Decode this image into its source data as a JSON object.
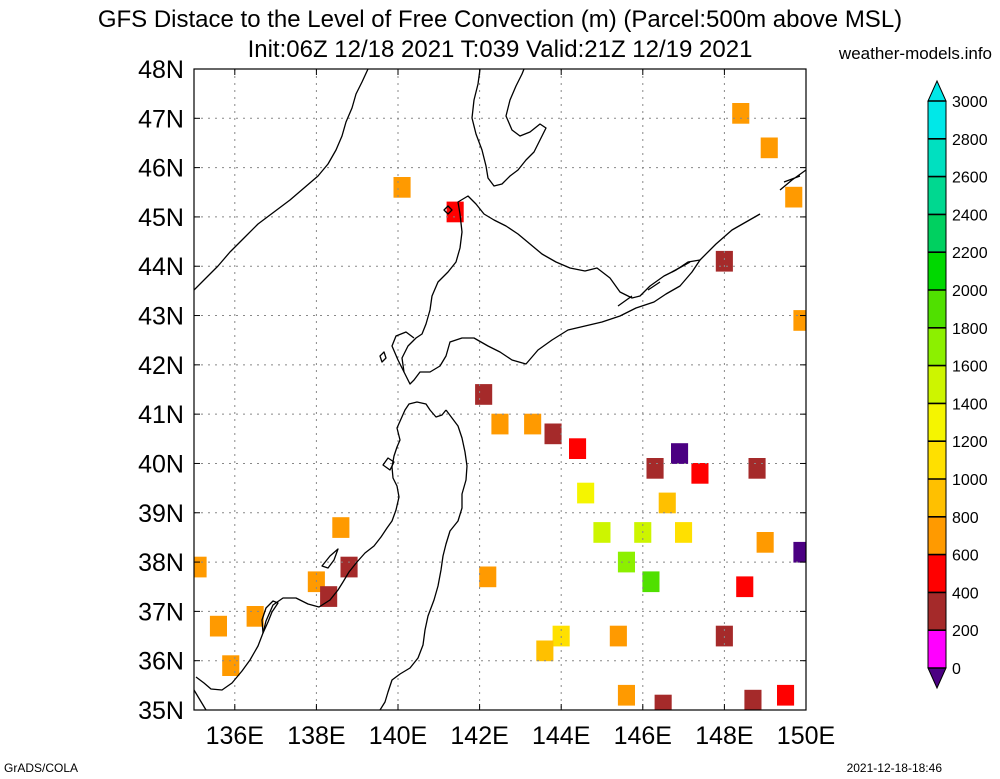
{
  "title": {
    "line1": "GFS Distace to the Level of Free Convection (m) (Parcel:500m above MSL)",
    "line2": "Init:06Z 12/18 2021 T:039 Valid:21Z 12/19 2021"
  },
  "credit": "weather-models.info",
  "footer": {
    "left": "GrADS/COLA",
    "right": "2021-12-18-18:46"
  },
  "map": {
    "lon_range": [
      135,
      150
    ],
    "lat_range": [
      35,
      48
    ],
    "lat_labels": [
      "35N",
      "36N",
      "37N",
      "38N",
      "39N",
      "40N",
      "41N",
      "42N",
      "43N",
      "44N",
      "45N",
      "46N",
      "47N",
      "48N"
    ],
    "lon_labels": [
      "136E",
      "138E",
      "140E",
      "142E",
      "144E",
      "146E",
      "148E",
      "150E"
    ],
    "lat_ticks": [
      35,
      36,
      37,
      38,
      39,
      40,
      41,
      42,
      43,
      44,
      45,
      46,
      47,
      48
    ],
    "lon_ticks": [
      136,
      138,
      140,
      142,
      144,
      146,
      148,
      150
    ]
  },
  "colorbar": {
    "labels": [
      "0",
      "200",
      "400",
      "600",
      "800",
      "1000",
      "1200",
      "1400",
      "1600",
      "1800",
      "2000",
      "2200",
      "2400",
      "2600",
      "2800",
      "3000"
    ],
    "colors": [
      "#4b0082",
      "#ff00ff",
      "#a52a2a",
      "#ff0000",
      "#ff9a00",
      "#ffc000",
      "#ffe000",
      "#f5f500",
      "#cdf500",
      "#8cf000",
      "#50e000",
      "#00d800",
      "#00d060",
      "#00d890",
      "#00e0c0",
      "#00e8e8"
    ]
  },
  "chart_data": {
    "type": "heatmap",
    "variable": "Distance to LFC (m)",
    "units": "m",
    "bounds": [
      0,
      200,
      400,
      600,
      800,
      1000,
      1200,
      1400,
      1600,
      1800,
      2000,
      2200,
      2400,
      2600,
      2800,
      3000
    ],
    "cells": [
      {
        "lon": 142.5,
        "lat": 40.8,
        "value": 900
      },
      {
        "lon": 143.3,
        "lat": 40.8,
        "value": 800
      },
      {
        "lon": 143.8,
        "lat": 40.6,
        "value": 500
      },
      {
        "lon": 144.4,
        "lat": 40.3,
        "value": 700
      },
      {
        "lon": 144.6,
        "lat": 39.4,
        "value": 1400
      },
      {
        "lon": 145.0,
        "lat": 38.6,
        "value": 1700
      },
      {
        "lon": 145.6,
        "lat": 38.0,
        "value": 1900
      },
      {
        "lon": 146.2,
        "lat": 37.6,
        "value": 2000
      },
      {
        "lon": 146.0,
        "lat": 38.6,
        "value": 1600
      },
      {
        "lon": 146.6,
        "lat": 39.2,
        "value": 1000
      },
      {
        "lon": 147.0,
        "lat": 38.6,
        "value": 1200
      },
      {
        "lon": 146.3,
        "lat": 39.9,
        "value": 400
      },
      {
        "lon": 147.4,
        "lat": 39.8,
        "value": 600
      },
      {
        "lon": 148.8,
        "lat": 39.9,
        "value": 400
      },
      {
        "lon": 149.0,
        "lat": 38.4,
        "value": 800
      },
      {
        "lon": 148.5,
        "lat": 37.5,
        "value": 700
      },
      {
        "lon": 148.0,
        "lat": 36.5,
        "value": 500
      },
      {
        "lon": 146.9,
        "lat": 40.2,
        "value": 150
      },
      {
        "lon": 149.9,
        "lat": 38.2,
        "value": 150
      },
      {
        "lon": 144.0,
        "lat": 36.5,
        "value": 1300
      },
      {
        "lon": 143.6,
        "lat": 36.2,
        "value": 1100
      },
      {
        "lon": 145.4,
        "lat": 36.5,
        "value": 900
      },
      {
        "lon": 145.6,
        "lat": 35.3,
        "value": 800
      },
      {
        "lon": 146.5,
        "lat": 35.1,
        "value": 500
      },
      {
        "lon": 148.7,
        "lat": 35.2,
        "value": 500
      },
      {
        "lon": 149.5,
        "lat": 35.3,
        "value": 700
      },
      {
        "lon": 142.2,
        "lat": 37.7,
        "value": 800
      },
      {
        "lon": 138.6,
        "lat": 38.7,
        "value": 900
      },
      {
        "lon": 138.0,
        "lat": 37.6,
        "value": 800
      },
      {
        "lon": 138.8,
        "lat": 37.9,
        "value": 400
      },
      {
        "lon": 138.3,
        "lat": 37.3,
        "value": 500
      },
      {
        "lon": 135.6,
        "lat": 36.7,
        "value": 900
      },
      {
        "lon": 136.5,
        "lat": 36.9,
        "value": 800
      },
      {
        "lon": 135.9,
        "lat": 35.9,
        "value": 900
      },
      {
        "lon": 135.1,
        "lat": 37.9,
        "value": 800
      },
      {
        "lon": 148.4,
        "lat": 47.1,
        "value": 900
      },
      {
        "lon": 149.1,
        "lat": 46.4,
        "value": 800
      },
      {
        "lon": 149.7,
        "lat": 45.4,
        "value": 800
      },
      {
        "lon": 148.0,
        "lat": 44.1,
        "value": 500
      },
      {
        "lon": 149.9,
        "lat": 42.9,
        "value": 800
      },
      {
        "lon": 140.1,
        "lat": 45.6,
        "value": 800
      },
      {
        "lon": 141.4,
        "lat": 45.1,
        "value": 700
      },
      {
        "lon": 142.1,
        "lat": 41.4,
        "value": 550
      }
    ]
  }
}
